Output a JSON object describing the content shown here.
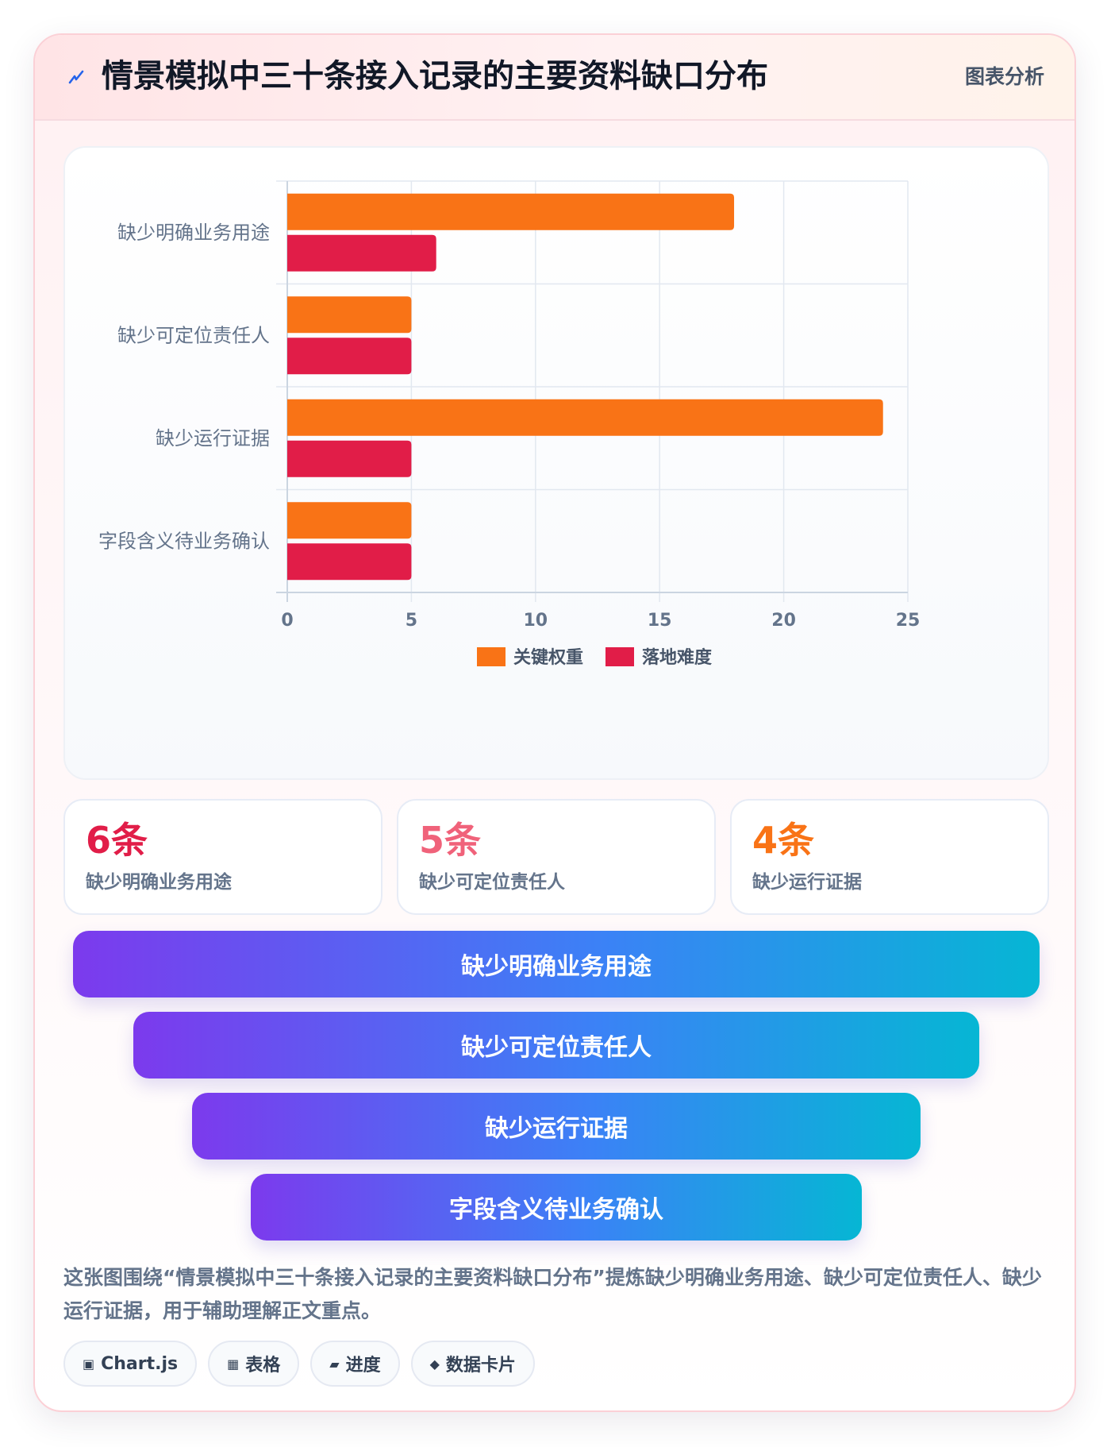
{
  "header": {
    "title": "情景模拟中三十条接入记录的主要资料缺口分布",
    "tag": "图表分析",
    "icon": "lightning-icon"
  },
  "chart_data": {
    "type": "bar",
    "orientation": "horizontal",
    "categories": [
      "缺少明确业务用途",
      "缺少可定位责任人",
      "缺少运行证据",
      "字段含义待业务确认"
    ],
    "series": [
      {
        "name": "关键权重",
        "values": [
          18,
          5,
          24,
          5
        ],
        "color": "#f97316"
      },
      {
        "name": "落地难度",
        "values": [
          6,
          5,
          5,
          5
        ],
        "color": "#e11d48"
      }
    ],
    "xlim": [
      0,
      25
    ],
    "xticks": [
      "0",
      "5",
      "10",
      "15",
      "20",
      "25"
    ],
    "grid": true,
    "legend": "bottom"
  },
  "stats": [
    {
      "value": "6条",
      "label": "缺少明确业务用途",
      "color": "#e11d48"
    },
    {
      "value": "5条",
      "label": "缺少可定位责任人",
      "color": "#f0627a"
    },
    {
      "value": "4条",
      "label": "缺少运行证据",
      "color": "#f97316"
    }
  ],
  "funnel": [
    {
      "label": "缺少明确业务用途"
    },
    {
      "label": "缺少可定位责任人"
    },
    {
      "label": "缺少运行证据"
    },
    {
      "label": "字段含义待业务确认"
    }
  ],
  "description": "这张图围绕“情景模拟中三十条接入记录的主要资料缺口分布”提炼缺少明确业务用途、缺少可定位责任人、缺少运行证据，用于辅助理解正文重点。",
  "tags": [
    {
      "icon": "▣",
      "icon_name": "chart-icon",
      "label": "Chart.js"
    },
    {
      "icon": "▦",
      "icon_name": "table-icon",
      "label": "表格"
    },
    {
      "icon": "▰",
      "icon_name": "progress-icon",
      "label": "进度"
    },
    {
      "icon": "◆",
      "icon_name": "diamond-icon",
      "label": "数据卡片"
    }
  ]
}
